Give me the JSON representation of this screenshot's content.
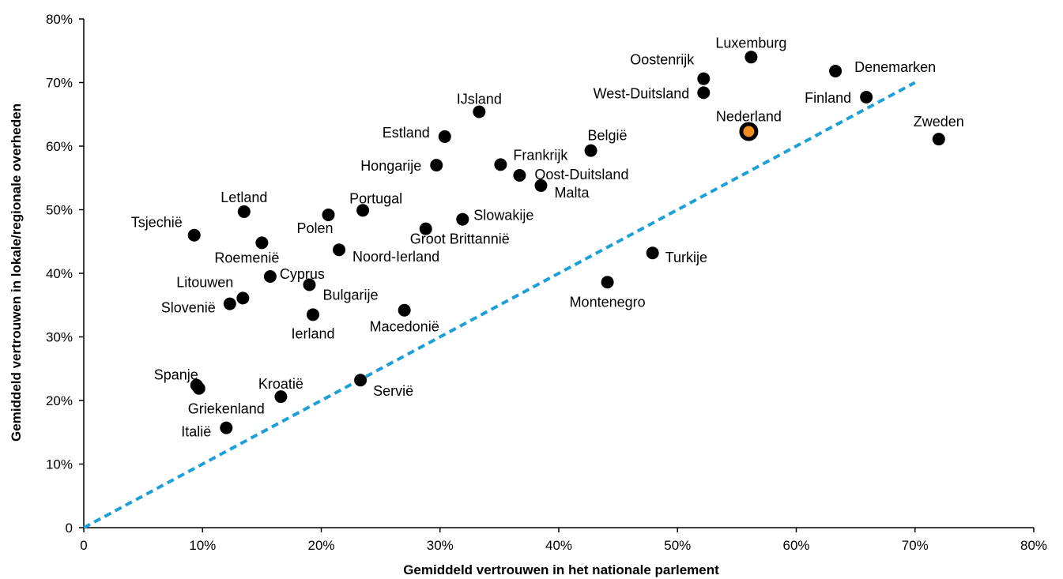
{
  "chart_data": {
    "type": "scatter",
    "title": "",
    "xlabel": "Gemiddeld vertrouwen in het nationale parlement",
    "ylabel": "Gemiddeld vertrouwen in lokale/regionale overheden",
    "xlim": [
      0,
      80
    ],
    "ylim": [
      0,
      80
    ],
    "x_tick_labels": [
      "0",
      "10%",
      "20%",
      "30%",
      "40%",
      "50%",
      "60%",
      "70%",
      "80%"
    ],
    "y_tick_labels": [
      "0",
      "10%",
      "20%",
      "30%",
      "40%",
      "50%",
      "60%",
      "70%",
      "80%"
    ],
    "grid": false,
    "legend": "none",
    "reference_line": {
      "style": "dashed",
      "color": "#1da0d8",
      "from": [
        0,
        0
      ],
      "to": [
        70,
        70
      ]
    },
    "colors": {
      "point": "#000000",
      "highlight": "#f28c1e",
      "reference": "#1da0d8"
    },
    "points": [
      {
        "label": "Luxemburg",
        "x": 56.2,
        "y": 74.0
      },
      {
        "label": "Oostenrijk",
        "x": 52.2,
        "y": 70.6
      },
      {
        "label": "West-Duitsland",
        "x": 52.2,
        "y": 68.4
      },
      {
        "label": "Denemarken",
        "x": 63.3,
        "y": 71.8
      },
      {
        "label": "Finland",
        "x": 65.9,
        "y": 67.7
      },
      {
        "label": "Nederland",
        "x": 56.0,
        "y": 62.3,
        "highlight": true
      },
      {
        "label": "Zweden",
        "x": 72.0,
        "y": 61.1
      },
      {
        "label": "IJsland",
        "x": 33.3,
        "y": 65.4
      },
      {
        "label": "Estland",
        "x": 30.4,
        "y": 61.5
      },
      {
        "label": "België",
        "x": 42.7,
        "y": 59.3
      },
      {
        "label": "Hongarije",
        "x": 29.7,
        "y": 57.0
      },
      {
        "label": "Frankrijk",
        "x": 35.1,
        "y": 57.1
      },
      {
        "label": "Oost-Duitsland",
        "x": 36.7,
        "y": 55.4
      },
      {
        "label": "Malta",
        "x": 38.5,
        "y": 53.8
      },
      {
        "label": "Letland",
        "x": 13.5,
        "y": 49.7
      },
      {
        "label": "Portugal",
        "x": 23.5,
        "y": 49.9
      },
      {
        "label": "Polen",
        "x": 20.6,
        "y": 49.2
      },
      {
        "label": "Slowakije",
        "x": 31.9,
        "y": 48.5
      },
      {
        "label": "Groot Brittannië",
        "x": 28.8,
        "y": 47.0
      },
      {
        "label": "Tsjechië",
        "x": 9.3,
        "y": 46.0
      },
      {
        "label": "Roemenië",
        "x": 15.0,
        "y": 44.8
      },
      {
        "label": "Noord-Ierland",
        "x": 21.5,
        "y": 43.7
      },
      {
        "label": "Turkije",
        "x": 47.9,
        "y": 43.2
      },
      {
        "label": "Cyprus",
        "x": 15.7,
        "y": 39.5
      },
      {
        "label": "Bulgarije",
        "x": 19.0,
        "y": 38.2
      },
      {
        "label": "Montenegro",
        "x": 44.1,
        "y": 38.6
      },
      {
        "label": "Litouwen",
        "x": 13.4,
        "y": 36.1
      },
      {
        "label": "Slovenië",
        "x": 12.3,
        "y": 35.2
      },
      {
        "label": "Ierland",
        "x": 19.3,
        "y": 33.5
      },
      {
        "label": "Macedonië",
        "x": 27.0,
        "y": 34.2
      },
      {
        "label": "Spanje",
        "x": 9.5,
        "y": 22.4
      },
      {
        "label": "Griekenland",
        "x": 9.7,
        "y": 21.9
      },
      {
        "label": "Kroatië",
        "x": 16.6,
        "y": 20.6
      },
      {
        "label": "Servië",
        "x": 23.3,
        "y": 23.2
      },
      {
        "label": "Italië",
        "x": 12.0,
        "y": 15.7
      }
    ]
  }
}
